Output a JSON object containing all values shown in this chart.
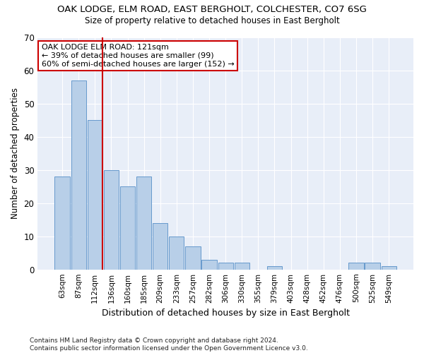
{
  "title": "OAK LODGE, ELM ROAD, EAST BERGHOLT, COLCHESTER, CO7 6SG",
  "subtitle": "Size of property relative to detached houses in East Bergholt",
  "xlabel": "Distribution of detached houses by size in East Bergholt",
  "ylabel": "Number of detached properties",
  "categories": [
    "63sqm",
    "87sqm",
    "112sqm",
    "136sqm",
    "160sqm",
    "185sqm",
    "209sqm",
    "233sqm",
    "257sqm",
    "282sqm",
    "306sqm",
    "330sqm",
    "355sqm",
    "379sqm",
    "403sqm",
    "428sqm",
    "452sqm",
    "476sqm",
    "500sqm",
    "525sqm",
    "549sqm"
  ],
  "values": [
    28,
    57,
    45,
    30,
    25,
    28,
    14,
    10,
    7,
    3,
    2,
    2,
    0,
    1,
    0,
    0,
    0,
    0,
    2,
    2,
    1
  ],
  "bar_color": "#b8cfe8",
  "bar_edge_color": "#6699cc",
  "vline_x_index": 2,
  "vline_color": "#cc0000",
  "annotation_text": "OAK LODGE ELM ROAD: 121sqm\n← 39% of detached houses are smaller (99)\n60% of semi-detached houses are larger (152) →",
  "annotation_box_color": "#ffffff",
  "annotation_box_edge": "#cc0000",
  "ylim": [
    0,
    70
  ],
  "yticks": [
    0,
    10,
    20,
    30,
    40,
    50,
    60,
    70
  ],
  "fig_bg_color": "#ffffff",
  "axes_bg_color": "#e8eef8",
  "grid_color": "#ffffff",
  "footer": "Contains HM Land Registry data © Crown copyright and database right 2024.\nContains public sector information licensed under the Open Government Licence v3.0."
}
